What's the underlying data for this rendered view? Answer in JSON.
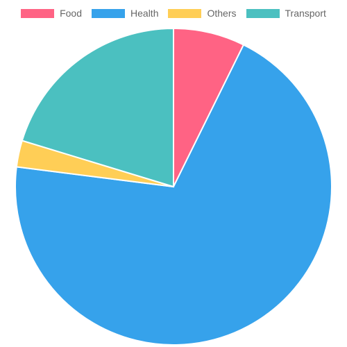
{
  "chart_data": {
    "type": "pie",
    "categories": [
      "Food",
      "Health",
      "Others",
      "Transport"
    ],
    "values": [
      7.3,
      69.7,
      2.7,
      20.3
    ],
    "colors": [
      "#ff6384",
      "#36a2eb",
      "#ffce56",
      "#4bc0c0"
    ],
    "legend_position": "top",
    "title": ""
  },
  "legend": {
    "items": [
      {
        "label": "Food",
        "color": "#ff6384"
      },
      {
        "label": "Health",
        "color": "#36a2eb"
      },
      {
        "label": "Others",
        "color": "#ffce56"
      },
      {
        "label": "Transport",
        "color": "#4bc0c0"
      }
    ]
  }
}
